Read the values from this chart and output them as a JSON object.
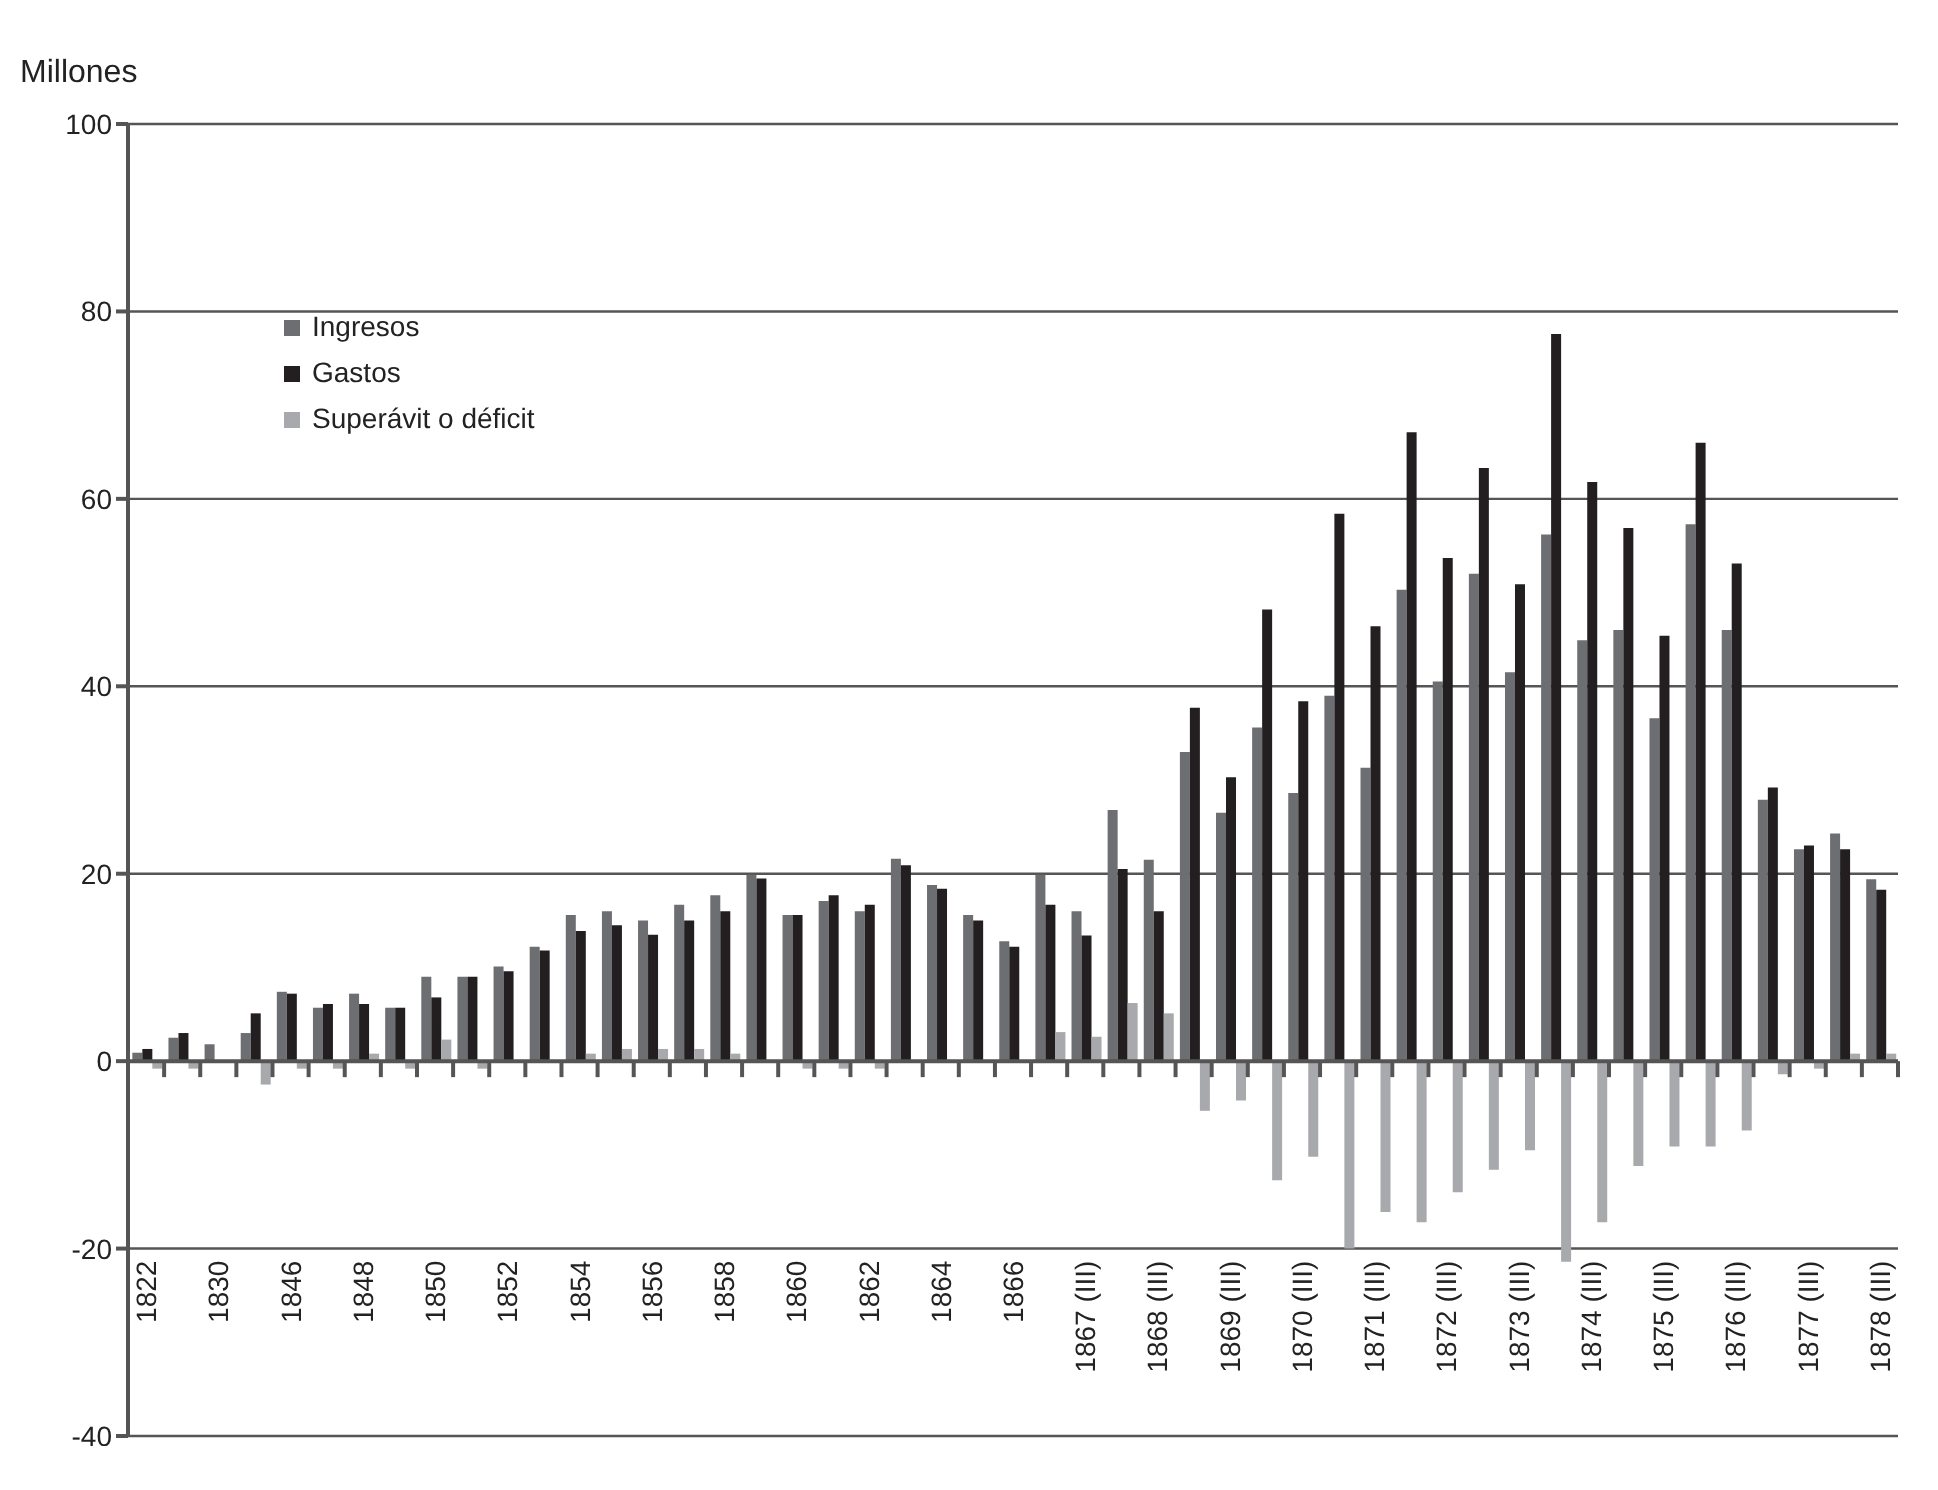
{
  "chart_data": {
    "type": "bar",
    "ylabel": "Millones",
    "categories": [
      "1822",
      null,
      "1830",
      null,
      "1846",
      null,
      "1848",
      null,
      "1850",
      null,
      "1852",
      null,
      "1854",
      null,
      "1856",
      null,
      "1858",
      null,
      "1860",
      null,
      "1862",
      null,
      "1864",
      null,
      "1866",
      null,
      "1867 (III)",
      null,
      "1868 (III)",
      null,
      "1869 (III)",
      null,
      "1870 (III)",
      null,
      "1871 (III)",
      null,
      "1872 (III)",
      null,
      "1873 (III)",
      null,
      "1874 (III)",
      null,
      "1875 (III)",
      null,
      "1876 (III)",
      null,
      "1877 (III)",
      null,
      "1878 (III)"
    ],
    "series": [
      {
        "name": "Ingresos",
        "color": "#6d6e71",
        "values": [
          0.9,
          2.5,
          1.8,
          3.0,
          7.4,
          5.7,
          7.2,
          5.7,
          9.0,
          9.0,
          10.1,
          12.2,
          15.6,
          16.0,
          15.0,
          16.7,
          17.7,
          19.9,
          15.6,
          17.1,
          16.0,
          21.6,
          18.8,
          15.6,
          12.8,
          19.9,
          16.0,
          26.8,
          21.5,
          33.0,
          26.5,
          35.6,
          28.6,
          39.0,
          31.3,
          50.3,
          40.5,
          52.0,
          41.5,
          56.2,
          44.9,
          46.0,
          36.6,
          57.3,
          46.0,
          27.9,
          22.6,
          24.3,
          19.4
        ]
      },
      {
        "name": "Gastos",
        "color": "#231f20",
        "values": [
          1.3,
          3.0,
          null,
          5.1,
          7.2,
          6.1,
          6.1,
          5.7,
          6.8,
          9.0,
          9.6,
          11.8,
          13.9,
          14.5,
          13.5,
          15.0,
          16.0,
          19.5,
          15.6,
          17.7,
          16.7,
          20.9,
          18.4,
          15.0,
          12.2,
          16.7,
          13.4,
          20.5,
          16.0,
          37.7,
          30.3,
          48.2,
          38.4,
          58.4,
          46.4,
          67.1,
          53.7,
          63.3,
          50.9,
          77.6,
          61.8,
          56.9,
          45.4,
          66.0,
          53.1,
          29.2,
          23.0,
          22.6,
          18.3
        ]
      },
      {
        "name": "Superávit o déficit",
        "color": "#a7a9ac",
        "values": [
          -0.8,
          -0.8,
          null,
          -2.5,
          -0.8,
          -0.8,
          0.8,
          -0.8,
          2.3,
          -0.8,
          0,
          0,
          0.8,
          1.3,
          1.3,
          1.3,
          0.8,
          0,
          -0.8,
          -0.8,
          -0.8,
          0,
          0,
          0,
          0,
          3.1,
          2.6,
          6.2,
          5.1,
          -5.3,
          -4.2,
          -12.7,
          -10.2,
          -20.0,
          -16.1,
          -17.2,
          -14.0,
          -11.6,
          -9.5,
          -21.4,
          -17.2,
          -11.2,
          -9.1,
          -9.1,
          -7.4,
          -1.4,
          -0.8,
          0.8,
          0.8
        ]
      }
    ],
    "ylim": [
      -40,
      100
    ],
    "yticks": [
      -40,
      -20,
      0,
      20,
      40,
      60,
      80,
      100
    ],
    "grid": "y",
    "legend": "top left"
  }
}
